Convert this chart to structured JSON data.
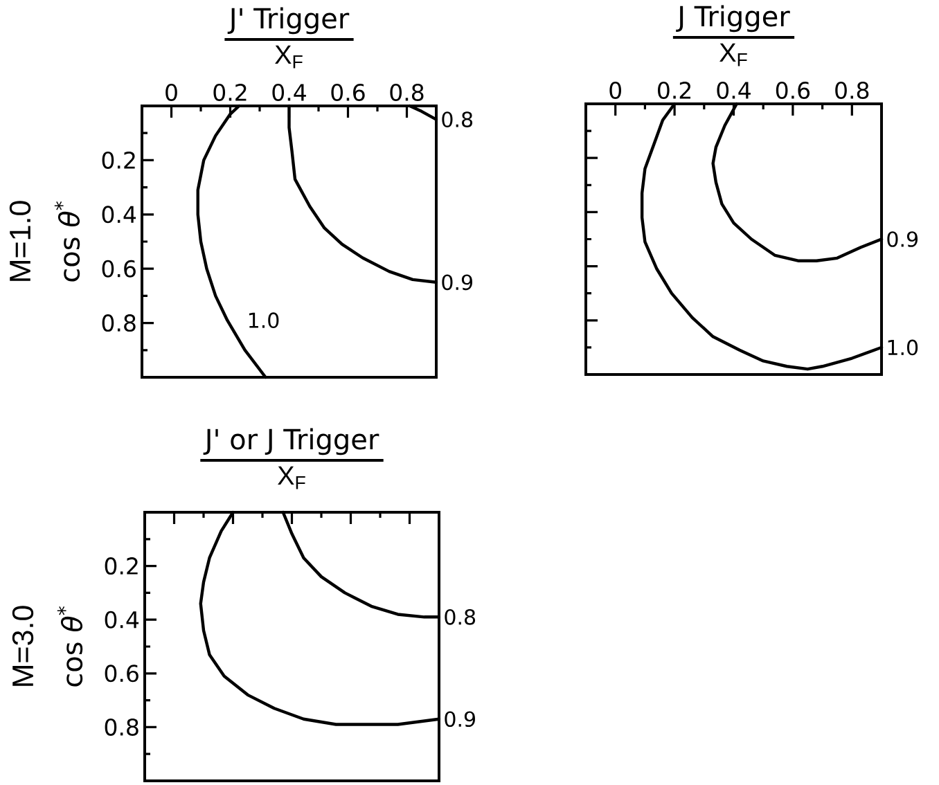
{
  "chart_data": [
    {
      "type": "line",
      "title": "J' Trigger",
      "xlabel": "X$_{F}$",
      "ylabel": "cos *θ*$^{*}$",
      "annotations": [
        "M=1.0"
      ],
      "xlim": [
        -0.1,
        0.9
      ],
      "ylim": [
        1.0,
        0.0
      ],
      "xticks": [
        0,
        {
          "value": 0.1,
          "label": null
        },
        0.2,
        {
          "value": 0.3,
          "label": null
        },
        0.4,
        {
          "value": 0.5,
          "label": null
        },
        0.6,
        {
          "value": 0.7,
          "label": null
        },
        0.8
      ],
      "yticks": [
        {
          "value": 0.1,
          "label": null
        },
        0.2,
        {
          "value": 0.3,
          "label": null
        },
        0.4,
        {
          "value": 0.5,
          "label": null
        },
        0.6,
        {
          "value": 0.7,
          "label": null
        },
        0.8,
        {
          "value": 0.9,
          "label": null
        }
      ],
      "series": [
        {
          "name": "1.0",
          "color": "#000000",
          "x": [
            0.23,
            0.2,
            0.15,
            0.11,
            0.09,
            0.09,
            0.1,
            0.12,
            0.15,
            0.19,
            0.25,
            0.32
          ],
          "values": [
            0,
            0.03,
            0.11,
            0.2,
            0.31,
            0.4,
            0.5,
            0.6,
            0.7,
            0.79,
            0.9,
            1.0
          ]
        },
        {
          "name": "0.9",
          "color": "#000000",
          "x": [
            0.4,
            0.4,
            0.41,
            0.42,
            0.47,
            0.52,
            0.58,
            0.65,
            0.74,
            0.82,
            0.9
          ],
          "values": [
            0,
            0.08,
            0.17,
            0.27,
            0.37,
            0.45,
            0.51,
            0.56,
            0.61,
            0.64,
            0.65
          ]
        },
        {
          "name": "0.8",
          "color": "#000000",
          "x": [
            0.81,
            0.85,
            0.9
          ],
          "values": [
            0,
            0.02,
            0.05
          ]
        }
      ]
    },
    {
      "type": "line",
      "title": "J Trigger",
      "xlabel": "X$_{F}$",
      "tick_labels": "x",
      "xlim": [
        -0.1,
        0.9
      ],
      "ylim": [
        1.0,
        0.0
      ],
      "xticks": [
        0,
        {
          "value": 0.1,
          "label": null
        },
        0.2,
        {
          "value": 0.3,
          "label": null
        },
        0.4,
        {
          "value": 0.5,
          "label": null
        },
        0.6,
        {
          "value": 0.7,
          "label": null
        },
        0.8
      ],
      "yticks": [
        {
          "value": 0.1,
          "label": null
        },
        0.2,
        {
          "value": 0.3,
          "label": null
        },
        0.4,
        {
          "value": 0.5,
          "label": null
        },
        0.6,
        {
          "value": 0.7,
          "label": null
        },
        0.8,
        {
          "value": 0.9,
          "label": null
        }
      ],
      "series": [
        {
          "name": "1.0",
          "color": "#000000",
          "x": [
            0.2,
            0.16,
            0.13,
            0.1,
            0.09,
            0.09,
            0.1,
            0.14,
            0.19,
            0.26,
            0.33,
            0.42,
            0.5,
            0.58,
            0.65,
            0.7,
            0.8,
            0.9
          ],
          "values": [
            0,
            0.06,
            0.15,
            0.24,
            0.33,
            0.42,
            0.51,
            0.61,
            0.7,
            0.79,
            0.86,
            0.91,
            0.95,
            0.97,
            0.98,
            0.97,
            0.94,
            0.9
          ]
        },
        {
          "name": "0.9",
          "color": "#000000",
          "x": [
            0.41,
            0.37,
            0.34,
            0.33,
            0.34,
            0.36,
            0.4,
            0.46,
            0.54,
            0.62,
            0.68,
            0.75,
            0.83,
            0.9
          ],
          "values": [
            0,
            0.08,
            0.16,
            0.22,
            0.29,
            0.37,
            0.44,
            0.5,
            0.56,
            0.58,
            0.58,
            0.57,
            0.53,
            0.5
          ]
        }
      ]
    },
    {
      "type": "line",
      "title": "J' or J Trigger",
      "xlabel": "X$_{F}$",
      "ylabel": "cos *θ*$^{*}$",
      "annotations": [
        "M=3.0"
      ],
      "tick_labels": "y",
      "xlim": [
        -0.1,
        0.9
      ],
      "ylim": [
        1.0,
        0.0
      ],
      "xticks": [
        0,
        {
          "value": 0.1,
          "label": null
        },
        0.2,
        {
          "value": 0.3,
          "label": null
        },
        0.4,
        {
          "value": 0.5,
          "label": null
        },
        0.6,
        {
          "value": 0.7,
          "label": null
        },
        0.8
      ],
      "yticks": [
        {
          "value": 0.1,
          "label": null
        },
        0.2,
        {
          "value": 0.3,
          "label": null
        },
        0.4,
        {
          "value": 0.5,
          "label": null
        },
        0.6,
        {
          "value": 0.7,
          "label": null
        },
        0.8,
        {
          "value": 0.9,
          "label": null
        }
      ],
      "series": [
        {
          "name": "0.9",
          "color": "#000000",
          "x": [
            0.2,
            0.16,
            0.12,
            0.1,
            0.09,
            0.1,
            0.12,
            0.17,
            0.25,
            0.34,
            0.44,
            0.55,
            0.66,
            0.76,
            0.9
          ],
          "values": [
            0,
            0.07,
            0.17,
            0.26,
            0.34,
            0.44,
            0.53,
            0.61,
            0.68,
            0.73,
            0.77,
            0.79,
            0.79,
            0.79,
            0.77
          ]
        },
        {
          "name": "0.8",
          "color": "#000000",
          "x": [
            0.37,
            0.4,
            0.44,
            0.5,
            0.58,
            0.67,
            0.76,
            0.85,
            0.9
          ],
          "values": [
            0,
            0.08,
            0.17,
            0.24,
            0.3,
            0.35,
            0.38,
            0.39,
            0.39
          ]
        }
      ]
    }
  ]
}
